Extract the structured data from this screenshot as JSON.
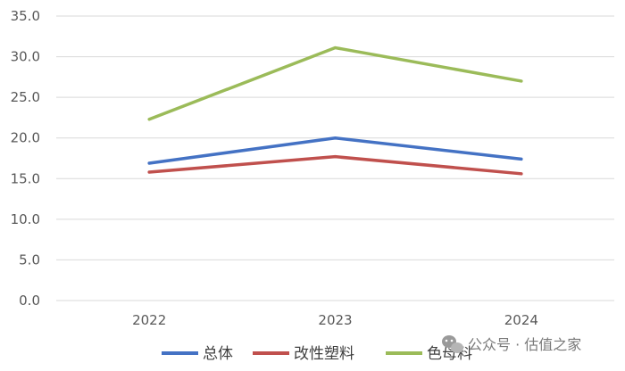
{
  "chart_data": {
    "type": "line",
    "categories": [
      "2022",
      "2023",
      "2024"
    ],
    "ylim": [
      0,
      35
    ],
    "yticks": [
      0,
      5,
      10,
      15,
      20,
      25,
      30,
      35
    ],
    "ytick_labels": [
      "0.0",
      "5.0",
      "10.0",
      "15.0",
      "20.0",
      "25.0",
      "30.0",
      "35.0"
    ],
    "grid": true,
    "legend_position": "bottom",
    "series": [
      {
        "name": "总体",
        "color": "#4472C4",
        "values": [
          16.9,
          20.0,
          17.4
        ]
      },
      {
        "name": "改性塑料",
        "color": "#C0504D",
        "values": [
          15.8,
          17.7,
          15.6
        ]
      },
      {
        "name": "色母料",
        "color": "#9BBB59",
        "values": [
          22.3,
          31.1,
          27.0
        ]
      }
    ]
  },
  "watermark": {
    "text": "公众号 · 估值之家",
    "icon": "wechat-icon"
  }
}
